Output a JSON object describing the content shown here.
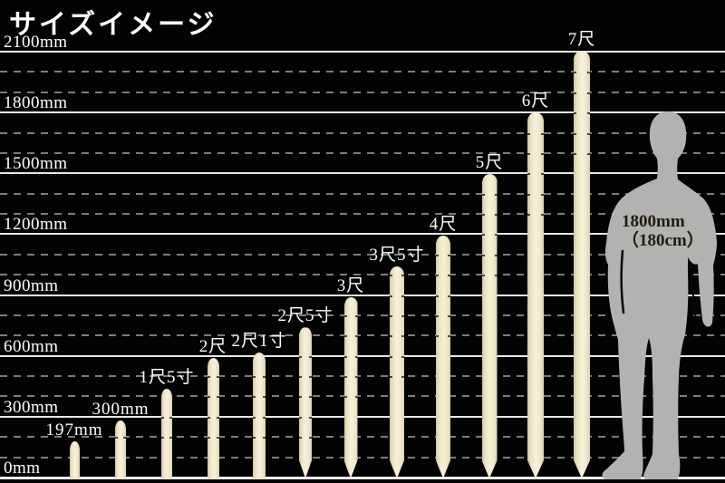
{
  "title": "サイズイメージ",
  "chart_data": {
    "type": "bar",
    "title": "サイズイメージ",
    "unit": "mm",
    "ylim": [
      0,
      2100
    ],
    "grid": "horizontal, solid major every 300mm, dashed minor every 100mm",
    "axis": {
      "max_mm": 2100,
      "minor_step_mm": 100,
      "major_step_mm": 300,
      "ticks": [
        {
          "mm": 0,
          "label": "0mm"
        },
        {
          "mm": 300,
          "label": "300mm"
        },
        {
          "mm": 600,
          "label": "600mm"
        },
        {
          "mm": 900,
          "label": "900mm"
        },
        {
          "mm": 1200,
          "label": "1200mm"
        },
        {
          "mm": 1500,
          "label": "1500mm"
        },
        {
          "mm": 1800,
          "label": "1800mm"
        },
        {
          "mm": 2100,
          "label": "2100mm"
        }
      ]
    },
    "stakes": [
      {
        "label": "197mm",
        "length_mm": 197,
        "pointed": false
      },
      {
        "label": "300mm",
        "length_mm": 300,
        "pointed": false
      },
      {
        "label": "1尺5寸",
        "length_mm": 455,
        "pointed": false
      },
      {
        "label": "2尺",
        "length_mm": 606,
        "pointed": false
      },
      {
        "label": "2尺1寸",
        "length_mm": 636,
        "pointed": false
      },
      {
        "label": "2尺5寸",
        "length_mm": 758,
        "pointed": true
      },
      {
        "label": "3尺",
        "length_mm": 909,
        "pointed": true
      },
      {
        "label": "3尺5寸",
        "length_mm": 1061,
        "pointed": true
      },
      {
        "label": "4尺",
        "length_mm": 1212,
        "pointed": true
      },
      {
        "label": "5尺",
        "length_mm": 1515,
        "pointed": true
      },
      {
        "label": "6尺",
        "length_mm": 1818,
        "pointed": true
      },
      {
        "label": "7尺",
        "length_mm": 2121,
        "pointed": true
      }
    ],
    "figure": {
      "height_mm": 1800,
      "label_line1": "1800mm",
      "label_line2": "（180cm）"
    }
  },
  "colors": {
    "background": "#030303",
    "text": "#ffffff",
    "grid_solid": "#e6e6e6",
    "grid_dashed": "#9b9b9b",
    "stake": "#f4ecd4",
    "stake_edge": "#d0c6a5",
    "silhouette": "#b2b2b0",
    "figure_text": "#221b10"
  }
}
